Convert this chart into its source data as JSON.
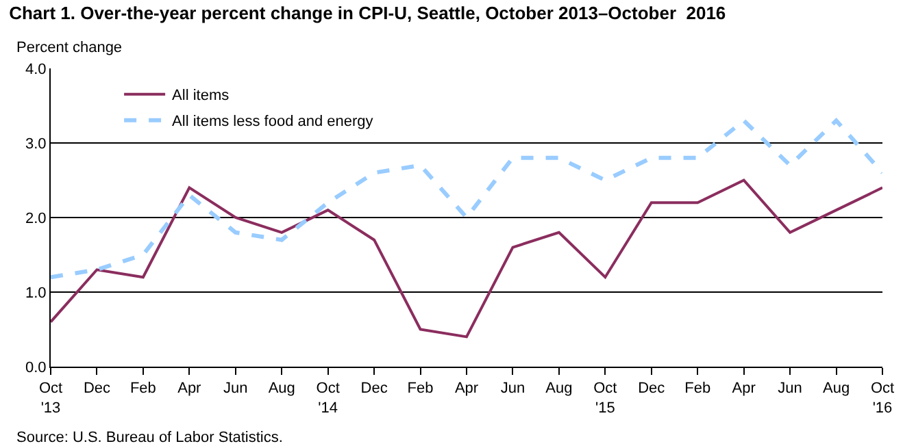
{
  "chart_data": {
    "type": "line",
    "title": "Chart 1. Over-the-year percent change in CPI-U, Seattle, October 2013–October  2016",
    "ylabel": "Percent change",
    "categories": [
      "Oct\n'13",
      "Dec",
      "Feb",
      "Apr",
      "Jun",
      "Aug",
      "Oct\n'14",
      "Dec",
      "Feb",
      "Apr",
      "Jun",
      "Aug",
      "Oct\n'15",
      "Dec",
      "Feb",
      "Apr",
      "Jun",
      "Aug",
      "Oct\n'16"
    ],
    "series": [
      {
        "name": "All items",
        "color": "#8b2d5e",
        "line_style": "solid",
        "values": [
          0.6,
          1.3,
          1.2,
          2.4,
          2.0,
          1.8,
          2.1,
          1.7,
          0.5,
          0.4,
          1.6,
          1.8,
          1.2,
          2.2,
          2.2,
          2.5,
          1.8,
          2.1,
          2.4
        ]
      },
      {
        "name": "All items less food and energy",
        "color": "#99ccff",
        "line_style": "dashed",
        "values": [
          1.2,
          1.3,
          1.5,
          2.3,
          1.8,
          1.7,
          2.2,
          2.6,
          2.7,
          2.0,
          2.8,
          2.8,
          2.5,
          2.8,
          2.8,
          3.3,
          2.7,
          3.3,
          2.6
        ]
      }
    ],
    "ylim": [
      0,
      4
    ],
    "yticks": [
      {
        "value": 0,
        "label": "0.0"
      },
      {
        "value": 1,
        "label": "1.0"
      },
      {
        "value": 2,
        "label": "2.0"
      },
      {
        "value": 3,
        "label": "3.0"
      },
      {
        "value": 4,
        "label": "4.0"
      }
    ],
    "grid": "y",
    "legend": "top left",
    "marker": "none",
    "annotations": [
      "Source: U.S. Bureau of Labor Statistics."
    ]
  }
}
